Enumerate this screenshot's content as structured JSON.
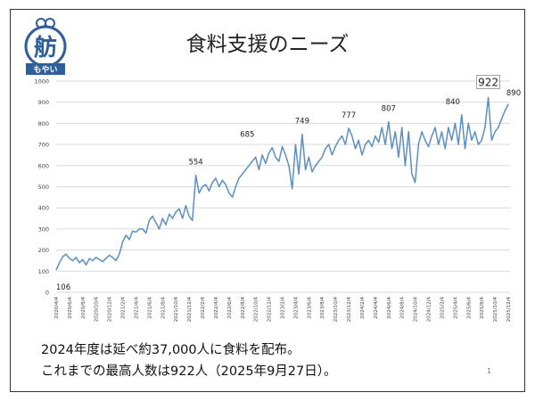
{
  "slide": {
    "title": "食料支援のニーズ",
    "logo_text": "舫 もやい",
    "footer_line1": "2024年度は延べ約37,000人に食料を配布。",
    "footer_line2": "これまでの最高人数は922人（2025年9月27日）。",
    "page_number": "1"
  },
  "chart_data": {
    "type": "line",
    "title": "",
    "xlabel": "",
    "ylabel": "",
    "ylim": [
      0,
      1000
    ],
    "y_ticks": [
      "0",
      "100",
      "200",
      "300",
      "400",
      "500",
      "600",
      "700",
      "800",
      "900",
      "1000"
    ],
    "x_tick_labels": [
      "2020/4/4",
      "2020/6/4",
      "2020/8/4",
      "2020/10/4",
      "2020/12/4",
      "2021/2/4",
      "2021/4/4",
      "2021/6/4",
      "2021/8/4",
      "2021/10/4",
      "2021/12/4",
      "2022/2/4",
      "2022/4/4",
      "2022/6/4",
      "2022/8/4",
      "2022/10/4",
      "2022/12/4",
      "2023/2/4",
      "2023/4/4",
      "2023/6/4",
      "2023/8/4",
      "2023/10/4",
      "2023/12/4",
      "2024/2/4",
      "2024/4/4",
      "2024/6/4",
      "2024/8/4",
      "2024/10/4",
      "2024/12/4",
      "2025/2/4",
      "2025/4/4",
      "2025/6/4",
      "2025/8/4",
      "2025/10/4",
      "2025/12/4"
    ],
    "grid": true,
    "line_color": "#5b8fc0",
    "values": [
      106,
      140,
      170,
      180,
      160,
      150,
      165,
      140,
      155,
      130,
      160,
      150,
      165,
      155,
      145,
      160,
      175,
      165,
      150,
      180,
      240,
      270,
      250,
      290,
      285,
      300,
      300,
      280,
      340,
      360,
      330,
      300,
      350,
      320,
      370,
      350,
      380,
      395,
      350,
      410,
      360,
      340,
      554,
      470,
      500,
      510,
      480,
      520,
      540,
      500,
      530,
      510,
      470,
      450,
      500,
      540,
      560,
      580,
      600,
      620,
      640,
      580,
      650,
      610,
      660,
      685,
      640,
      620,
      690,
      650,
      600,
      490,
      700,
      560,
      749,
      580,
      640,
      570,
      600,
      620,
      640,
      680,
      700,
      650,
      690,
      720,
      740,
      700,
      777,
      740,
      680,
      720,
      650,
      700,
      720,
      690,
      740,
      710,
      780,
      700,
      807,
      680,
      760,
      640,
      780,
      600,
      760,
      560,
      520,
      700,
      760,
      720,
      690,
      740,
      780,
      700,
      760,
      680,
      780,
      720,
      800,
      700,
      840,
      680,
      800,
      720,
      760,
      700,
      720,
      780,
      922,
      720,
      760,
      780,
      820,
      860,
      890
    ],
    "annotations": [
      {
        "label": "106",
        "value": 106,
        "boxed": false
      },
      {
        "label": "554",
        "value": 554,
        "boxed": false
      },
      {
        "label": "685",
        "value": 685,
        "boxed": false
      },
      {
        "label": "749",
        "value": 749,
        "boxed": false
      },
      {
        "label": "777",
        "value": 777,
        "boxed": false
      },
      {
        "label": "807",
        "value": 807,
        "boxed": false
      },
      {
        "label": "840",
        "value": 840,
        "boxed": false
      },
      {
        "label": "922",
        "value": 922,
        "boxed": true
      },
      {
        "label": "890",
        "value": 890,
        "boxed": false
      }
    ]
  }
}
